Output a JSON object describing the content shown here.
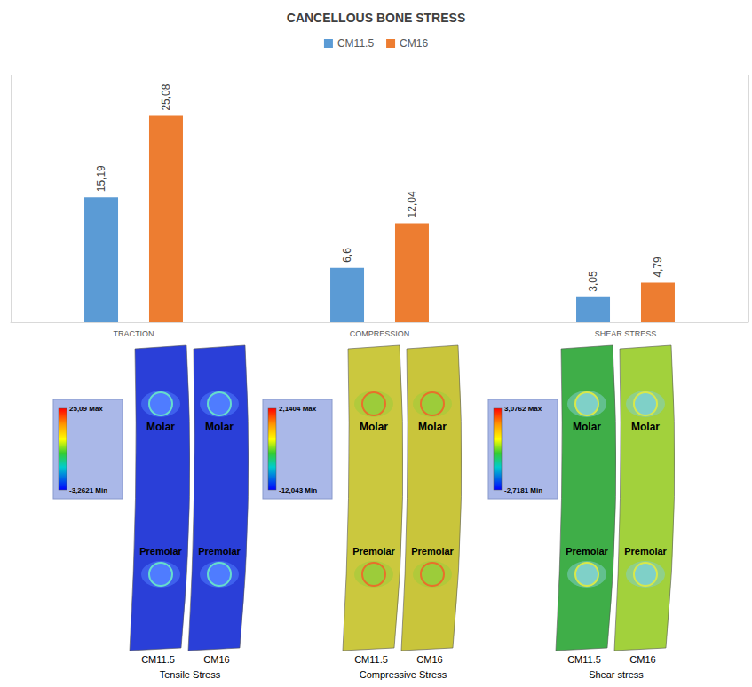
{
  "chart_data": {
    "type": "bar",
    "title": "CANCELLOUS BONE STRESS",
    "categories": [
      "TRACTION",
      "COMPRESSION",
      "SHEAR STRESS"
    ],
    "series": [
      {
        "name": "CM11.5",
        "color": "#5b9bd5",
        "values": [
          15.19,
          6.6,
          3.05
        ],
        "value_labels": [
          "15,19",
          "6,6",
          "3,05"
        ]
      },
      {
        "name": "CM16",
        "color": "#ed7d31",
        "values": [
          25.08,
          12.04,
          4.79
        ],
        "value_labels": [
          "25,08",
          "12,04",
          "4,79"
        ]
      }
    ],
    "ylim": [
      0,
      30
    ],
    "grid": true,
    "legend": "top",
    "data_labels": true,
    "tick_labels": "x"
  },
  "panels": [
    {
      "title": "Tensile Stress",
      "strips": [
        "CM11.5",
        "CM16"
      ],
      "regions": [
        "Molar",
        "Premolar"
      ],
      "colorbar": [
        {
          "value": 25.09,
          "label": "25,09 Max"
        },
        {
          "value": -3.2621,
          "label": "-3,2621 Min"
        }
      ]
    },
    {
      "title": "Compressive Stress",
      "strips": [
        "CM11.5",
        "CM16"
      ],
      "regions": [
        "Molar",
        "Premolar"
      ],
      "colorbar": [
        {
          "value": 2.1404,
          "label": "2,1404 Max"
        },
        {
          "value": -12.043,
          "label": "-12,043 Min"
        }
      ]
    },
    {
      "title": "Shear stress",
      "strips": [
        "CM11.5",
        "CM16"
      ],
      "regions": [
        "Molar",
        "Premolar"
      ],
      "colorbar": [
        {
          "value": 3.0762,
          "label": "3,0762 Max"
        },
        {
          "value": -2.7181,
          "label": "-2,7181 Min"
        }
      ]
    }
  ]
}
